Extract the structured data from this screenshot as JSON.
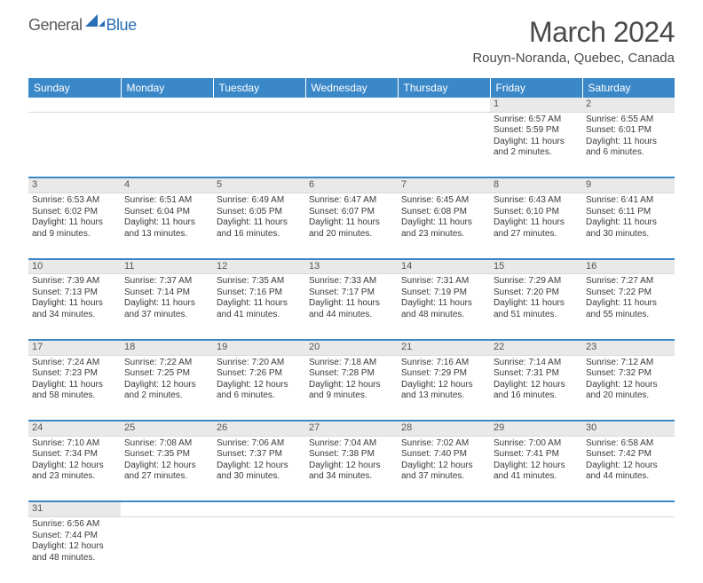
{
  "logo": {
    "part1": "General",
    "part2": "Blue"
  },
  "title": "March 2024",
  "location": "Rouyn-Noranda, Quebec, Canada",
  "colors": {
    "header_bg": "#3b88c9",
    "header_text": "#ffffff",
    "daynum_bg": "#e9e9e9",
    "row_border": "#3b88c9",
    "logo_blue": "#2a6fb5",
    "logo_gray": "#5a5a5a",
    "body_text": "#3a3a3a"
  },
  "daysOfWeek": [
    "Sunday",
    "Monday",
    "Tuesday",
    "Wednesday",
    "Thursday",
    "Friday",
    "Saturday"
  ],
  "weeks": [
    [
      null,
      null,
      null,
      null,
      null,
      {
        "n": "1",
        "sr": "Sunrise: 6:57 AM",
        "ss": "Sunset: 5:59 PM",
        "d1": "Daylight: 11 hours",
        "d2": "and 2 minutes."
      },
      {
        "n": "2",
        "sr": "Sunrise: 6:55 AM",
        "ss": "Sunset: 6:01 PM",
        "d1": "Daylight: 11 hours",
        "d2": "and 6 minutes."
      }
    ],
    [
      {
        "n": "3",
        "sr": "Sunrise: 6:53 AM",
        "ss": "Sunset: 6:02 PM",
        "d1": "Daylight: 11 hours",
        "d2": "and 9 minutes."
      },
      {
        "n": "4",
        "sr": "Sunrise: 6:51 AM",
        "ss": "Sunset: 6:04 PM",
        "d1": "Daylight: 11 hours",
        "d2": "and 13 minutes."
      },
      {
        "n": "5",
        "sr": "Sunrise: 6:49 AM",
        "ss": "Sunset: 6:05 PM",
        "d1": "Daylight: 11 hours",
        "d2": "and 16 minutes."
      },
      {
        "n": "6",
        "sr": "Sunrise: 6:47 AM",
        "ss": "Sunset: 6:07 PM",
        "d1": "Daylight: 11 hours",
        "d2": "and 20 minutes."
      },
      {
        "n": "7",
        "sr": "Sunrise: 6:45 AM",
        "ss": "Sunset: 6:08 PM",
        "d1": "Daylight: 11 hours",
        "d2": "and 23 minutes."
      },
      {
        "n": "8",
        "sr": "Sunrise: 6:43 AM",
        "ss": "Sunset: 6:10 PM",
        "d1": "Daylight: 11 hours",
        "d2": "and 27 minutes."
      },
      {
        "n": "9",
        "sr": "Sunrise: 6:41 AM",
        "ss": "Sunset: 6:11 PM",
        "d1": "Daylight: 11 hours",
        "d2": "and 30 minutes."
      }
    ],
    [
      {
        "n": "10",
        "sr": "Sunrise: 7:39 AM",
        "ss": "Sunset: 7:13 PM",
        "d1": "Daylight: 11 hours",
        "d2": "and 34 minutes."
      },
      {
        "n": "11",
        "sr": "Sunrise: 7:37 AM",
        "ss": "Sunset: 7:14 PM",
        "d1": "Daylight: 11 hours",
        "d2": "and 37 minutes."
      },
      {
        "n": "12",
        "sr": "Sunrise: 7:35 AM",
        "ss": "Sunset: 7:16 PM",
        "d1": "Daylight: 11 hours",
        "d2": "and 41 minutes."
      },
      {
        "n": "13",
        "sr": "Sunrise: 7:33 AM",
        "ss": "Sunset: 7:17 PM",
        "d1": "Daylight: 11 hours",
        "d2": "and 44 minutes."
      },
      {
        "n": "14",
        "sr": "Sunrise: 7:31 AM",
        "ss": "Sunset: 7:19 PM",
        "d1": "Daylight: 11 hours",
        "d2": "and 48 minutes."
      },
      {
        "n": "15",
        "sr": "Sunrise: 7:29 AM",
        "ss": "Sunset: 7:20 PM",
        "d1": "Daylight: 11 hours",
        "d2": "and 51 minutes."
      },
      {
        "n": "16",
        "sr": "Sunrise: 7:27 AM",
        "ss": "Sunset: 7:22 PM",
        "d1": "Daylight: 11 hours",
        "d2": "and 55 minutes."
      }
    ],
    [
      {
        "n": "17",
        "sr": "Sunrise: 7:24 AM",
        "ss": "Sunset: 7:23 PM",
        "d1": "Daylight: 11 hours",
        "d2": "and 58 minutes."
      },
      {
        "n": "18",
        "sr": "Sunrise: 7:22 AM",
        "ss": "Sunset: 7:25 PM",
        "d1": "Daylight: 12 hours",
        "d2": "and 2 minutes."
      },
      {
        "n": "19",
        "sr": "Sunrise: 7:20 AM",
        "ss": "Sunset: 7:26 PM",
        "d1": "Daylight: 12 hours",
        "d2": "and 6 minutes."
      },
      {
        "n": "20",
        "sr": "Sunrise: 7:18 AM",
        "ss": "Sunset: 7:28 PM",
        "d1": "Daylight: 12 hours",
        "d2": "and 9 minutes."
      },
      {
        "n": "21",
        "sr": "Sunrise: 7:16 AM",
        "ss": "Sunset: 7:29 PM",
        "d1": "Daylight: 12 hours",
        "d2": "and 13 minutes."
      },
      {
        "n": "22",
        "sr": "Sunrise: 7:14 AM",
        "ss": "Sunset: 7:31 PM",
        "d1": "Daylight: 12 hours",
        "d2": "and 16 minutes."
      },
      {
        "n": "23",
        "sr": "Sunrise: 7:12 AM",
        "ss": "Sunset: 7:32 PM",
        "d1": "Daylight: 12 hours",
        "d2": "and 20 minutes."
      }
    ],
    [
      {
        "n": "24",
        "sr": "Sunrise: 7:10 AM",
        "ss": "Sunset: 7:34 PM",
        "d1": "Daylight: 12 hours",
        "d2": "and 23 minutes."
      },
      {
        "n": "25",
        "sr": "Sunrise: 7:08 AM",
        "ss": "Sunset: 7:35 PM",
        "d1": "Daylight: 12 hours",
        "d2": "and 27 minutes."
      },
      {
        "n": "26",
        "sr": "Sunrise: 7:06 AM",
        "ss": "Sunset: 7:37 PM",
        "d1": "Daylight: 12 hours",
        "d2": "and 30 minutes."
      },
      {
        "n": "27",
        "sr": "Sunrise: 7:04 AM",
        "ss": "Sunset: 7:38 PM",
        "d1": "Daylight: 12 hours",
        "d2": "and 34 minutes."
      },
      {
        "n": "28",
        "sr": "Sunrise: 7:02 AM",
        "ss": "Sunset: 7:40 PM",
        "d1": "Daylight: 12 hours",
        "d2": "and 37 minutes."
      },
      {
        "n": "29",
        "sr": "Sunrise: 7:00 AM",
        "ss": "Sunset: 7:41 PM",
        "d1": "Daylight: 12 hours",
        "d2": "and 41 minutes."
      },
      {
        "n": "30",
        "sr": "Sunrise: 6:58 AM",
        "ss": "Sunset: 7:42 PM",
        "d1": "Daylight: 12 hours",
        "d2": "and 44 minutes."
      }
    ],
    [
      {
        "n": "31",
        "sr": "Sunrise: 6:56 AM",
        "ss": "Sunset: 7:44 PM",
        "d1": "Daylight: 12 hours",
        "d2": "and 48 minutes."
      },
      null,
      null,
      null,
      null,
      null,
      null
    ]
  ]
}
